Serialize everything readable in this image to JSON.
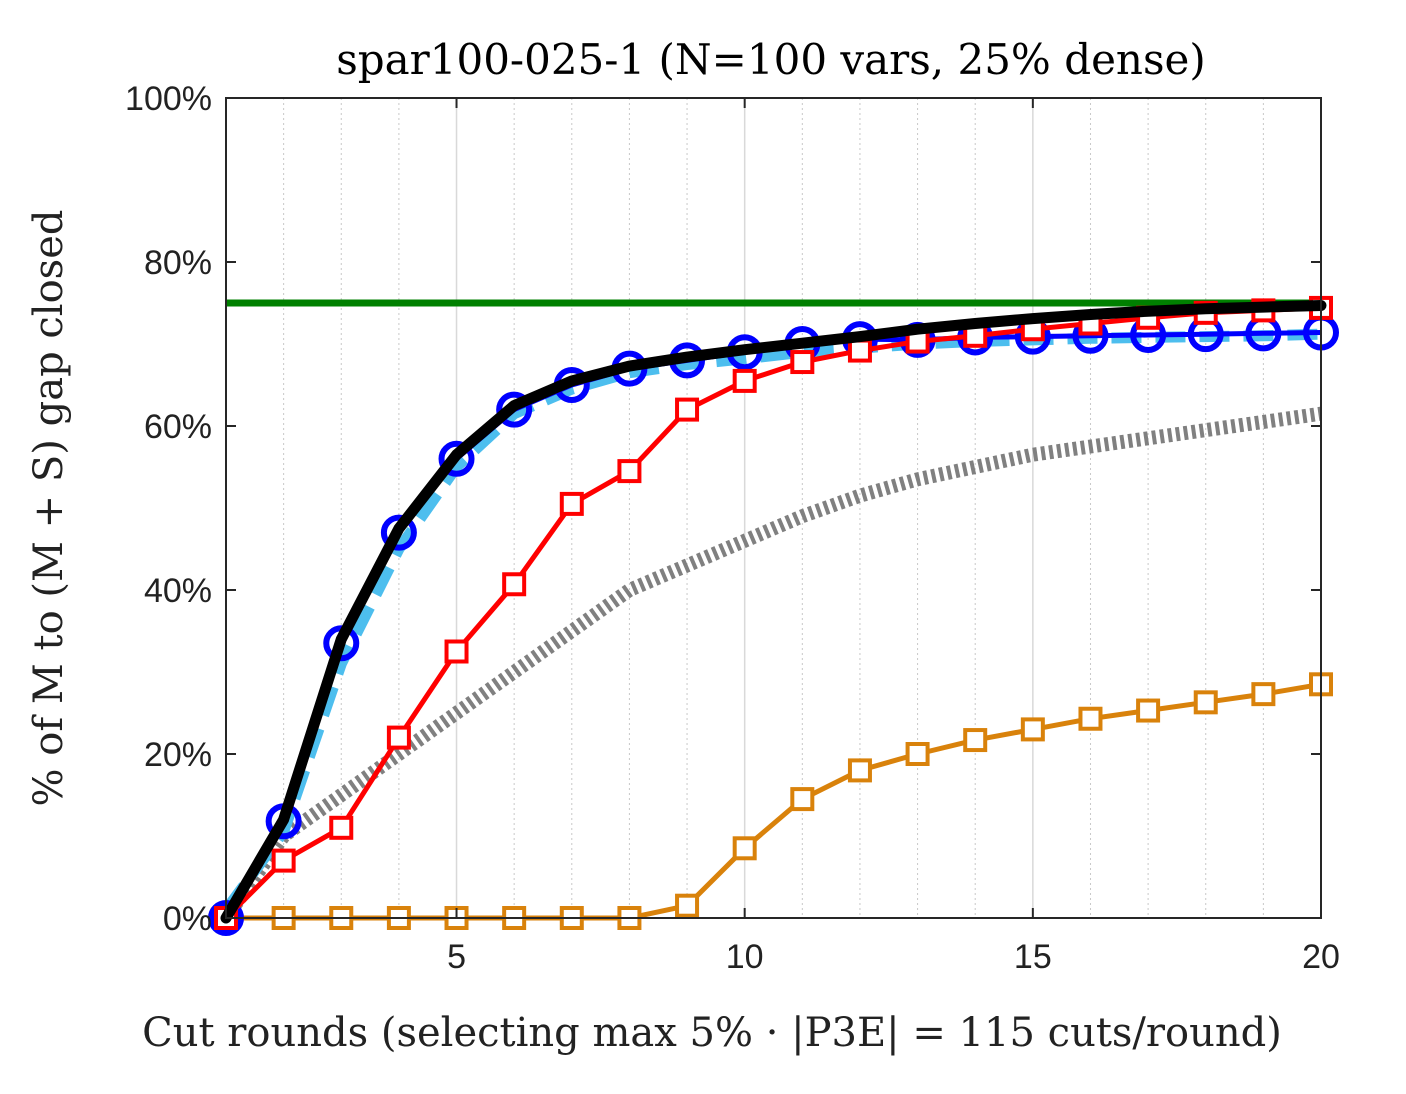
{
  "chart_data": {
    "type": "line",
    "title": "spar100-025-1 (N=100 vars, 25% dense)",
    "xlabel": "Cut rounds (selecting max 5% · |P3E| = 115 cuts/round)",
    "ylabel": "% of M to (M + S) gap closed",
    "xlim": [
      1,
      20
    ],
    "ylim": [
      0,
      100
    ],
    "x_ticks": [
      5,
      10,
      15,
      20
    ],
    "x_tick_labels": [
      "5",
      "10",
      "15",
      "20"
    ],
    "y_ticks": [
      0,
      20,
      40,
      60,
      80,
      100
    ],
    "y_tick_labels": [
      "0%",
      "20%",
      "40%",
      "60%",
      "80%",
      "100%"
    ],
    "grid": "vertical",
    "x": [
      1,
      2,
      3,
      4,
      5,
      6,
      7,
      8,
      9,
      10,
      11,
      12,
      13,
      14,
      15,
      16,
      17,
      18,
      19,
      20
    ],
    "series": [
      {
        "style": "gray-dotted-thick",
        "color": "#808080",
        "values": [
          0,
          10,
          15,
          20,
          25,
          30,
          35,
          40,
          43,
          46,
          49,
          51.5,
          53.5,
          55,
          56.5,
          57.5,
          58.5,
          59.5,
          60.5,
          61.5
        ]
      },
      {
        "style": "green-solid",
        "color": "#008000",
        "values": [
          75,
          75,
          75,
          75,
          75,
          75,
          75,
          75,
          75,
          75,
          75,
          75,
          75,
          75,
          75,
          75,
          75,
          75,
          75,
          75
        ]
      },
      {
        "style": "orange-square",
        "color": "#D9820B",
        "values": [
          0,
          0,
          0,
          0,
          0,
          0,
          0,
          0,
          1.5,
          8.5,
          14.5,
          18,
          20,
          21.7,
          23,
          24.3,
          25.3,
          26.3,
          27.3,
          28.5
        ]
      },
      {
        "style": "cyan-dashed",
        "color": "#4DBEEE",
        "values": [
          1,
          10.5,
          31,
          45,
          55,
          61.5,
          64.5,
          66.5,
          67.5,
          68.2,
          69,
          69.5,
          70,
          70.3,
          70.5,
          70.7,
          70.8,
          70.9,
          71,
          71.2
        ]
      },
      {
        "style": "blue-circle",
        "color": "#0000FF",
        "values": [
          0,
          11.8,
          33.5,
          47,
          56,
          62,
          65,
          67,
          68,
          69,
          70,
          70.6,
          70.5,
          70.8,
          70.9,
          71,
          71.1,
          71.2,
          71.3,
          71.4
        ]
      },
      {
        "style": "red-square",
        "color": "#FF0000",
        "values": [
          0,
          7,
          11,
          22,
          32.5,
          40.7,
          50.5,
          54.5,
          62,
          65.5,
          67.8,
          69.2,
          70.3,
          71,
          71.8,
          72.5,
          73.2,
          73.8,
          74.1,
          74.4
        ]
      },
      {
        "style": "black-solid-thick",
        "color": "#000000",
        "values": [
          0,
          12,
          34,
          47.5,
          56.5,
          62.5,
          65.5,
          67.3,
          68.4,
          69.3,
          70.1,
          70.9,
          71.8,
          72.5,
          73.1,
          73.6,
          74,
          74.3,
          74.5,
          74.7
        ]
      }
    ]
  }
}
